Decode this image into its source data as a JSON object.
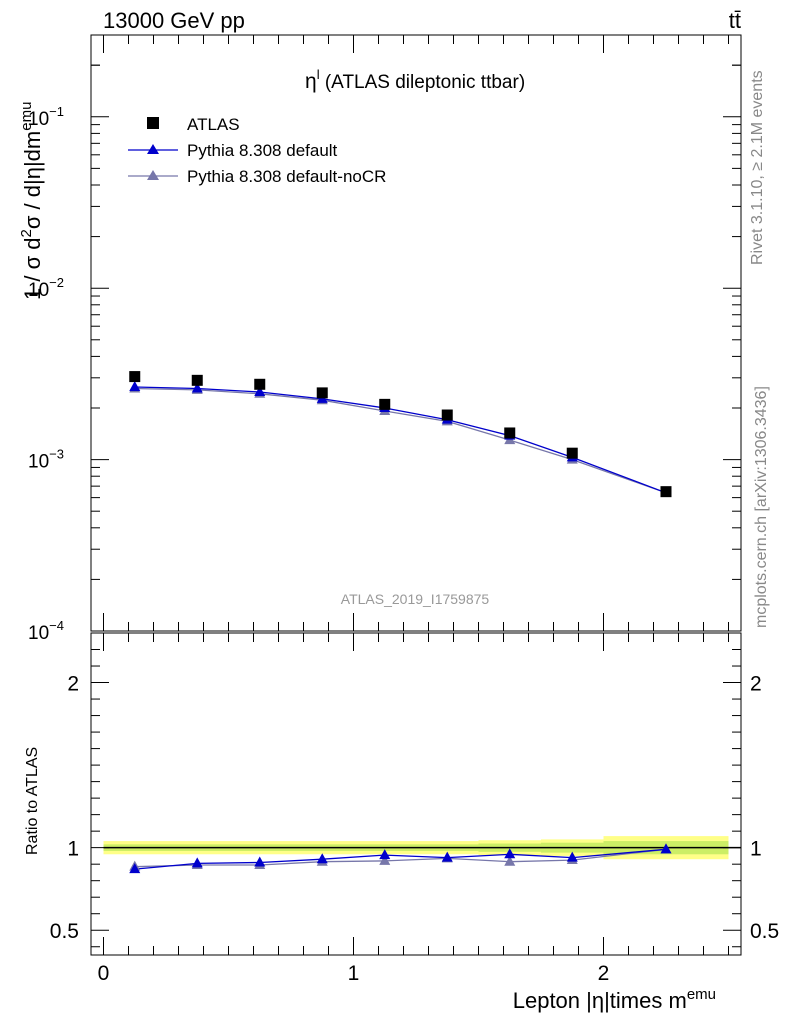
{
  "header": {
    "energy_label": "13000 GeV pp",
    "process_label": "tt̄"
  },
  "side_labels": {
    "rivet": "Rivet 3.1.10, ≥ 2.1M events",
    "mcplots": "mcplots.cern.ch [arXiv:1306.3436]"
  },
  "watermark": "ATLAS_2019_I1759875",
  "colors": {
    "data": "#000000",
    "default": "#0000cc",
    "nocr": "#7777aa",
    "band_inner": "#ccee66",
    "band_outer": "#ffff88"
  },
  "chart_data": [
    {
      "type": "scatter",
      "panel": "main",
      "title": "η^l (ATLAS dileptonic ttbar)",
      "title_main": "η",
      "title_sup": "l",
      "title_rest": " (ATLAS dileptonic ttbar)",
      "ylabel": "1 / σ d²σ / d|η|dm^emu",
      "ylabel_parts": [
        "1 / σ d",
        "2",
        "σ / d|η|dm",
        "emu"
      ],
      "yscale": "log",
      "ylim": [
        0.0001,
        0.3
      ],
      "xlim": [
        -0.05,
        2.55
      ],
      "y_ticks": [
        {
          "value": 0.0001,
          "label_base": "10",
          "label_exp": "−4"
        },
        {
          "value": 0.001,
          "label_base": "10",
          "label_exp": "−3"
        },
        {
          "value": 0.01,
          "label_base": "10",
          "label_exp": "−2"
        },
        {
          "value": 0.1,
          "label_base": "10",
          "label_exp": "−1"
        }
      ],
      "legend_position": "top-left",
      "series": [
        {
          "name": "ATLAS",
          "marker": "square",
          "x": [
            0.125,
            0.375,
            0.625,
            0.875,
            1.125,
            1.375,
            1.625,
            1.875,
            2.25
          ],
          "y": [
            0.00305,
            0.0029,
            0.00275,
            0.00245,
            0.0021,
            0.00182,
            0.00143,
            0.00109,
            0.00065
          ]
        },
        {
          "name": "Pythia 8.308 default",
          "marker": "triangle",
          "x": [
            0.125,
            0.375,
            0.625,
            0.875,
            1.125,
            1.375,
            1.625,
            1.875,
            2.25
          ],
          "y": [
            0.00265,
            0.0026,
            0.00248,
            0.00226,
            0.002,
            0.00171,
            0.00138,
            0.00103,
            0.00064
          ]
        },
        {
          "name": "Pythia 8.308 default-noCR",
          "marker": "triangle",
          "x": [
            0.125,
            0.375,
            0.625,
            0.875,
            1.125,
            1.375,
            1.625,
            1.875,
            2.25
          ],
          "y": [
            0.0026,
            0.00255,
            0.00242,
            0.00222,
            0.00192,
            0.00167,
            0.0013,
            0.001,
            0.00064
          ]
        }
      ]
    },
    {
      "type": "line",
      "panel": "ratio",
      "ylabel": "Ratio to ATLAS",
      "xlabel": "Lepton |η|times m^emu",
      "xlabel_parts": [
        "Lepton |η|times m",
        "emu"
      ],
      "ylim": [
        0.35,
        2.3
      ],
      "xlim": [
        -0.05,
        2.55
      ],
      "y_ticks": [
        0.5,
        1,
        2
      ],
      "x_ticks": [
        0,
        1,
        2
      ],
      "band": {
        "x_edges": [
          0,
          0.25,
          0.5,
          0.75,
          1.0,
          1.25,
          1.5,
          1.75,
          2.0,
          2.5
        ],
        "inner_halfwidth": [
          0.02,
          0.02,
          0.02,
          0.02,
          0.02,
          0.02,
          0.025,
          0.03,
          0.04
        ],
        "outer_halfwidth": [
          0.04,
          0.04,
          0.04,
          0.04,
          0.04,
          0.04,
          0.045,
          0.05,
          0.07
        ]
      },
      "series": [
        {
          "name": "Pythia 8.308 default",
          "x": [
            0.125,
            0.375,
            0.625,
            0.875,
            1.125,
            1.375,
            1.625,
            1.875,
            2.25
          ],
          "y": [
            0.87,
            0.905,
            0.91,
            0.93,
            0.955,
            0.94,
            0.96,
            0.94,
            0.99
          ]
        },
        {
          "name": "Pythia 8.308 default-noCR",
          "x": [
            0.125,
            0.375,
            0.625,
            0.875,
            1.125,
            1.375,
            1.625,
            1.875,
            2.25
          ],
          "y": [
            0.885,
            0.895,
            0.895,
            0.915,
            0.92,
            0.935,
            0.915,
            0.925,
            0.99
          ]
        }
      ]
    }
  ]
}
